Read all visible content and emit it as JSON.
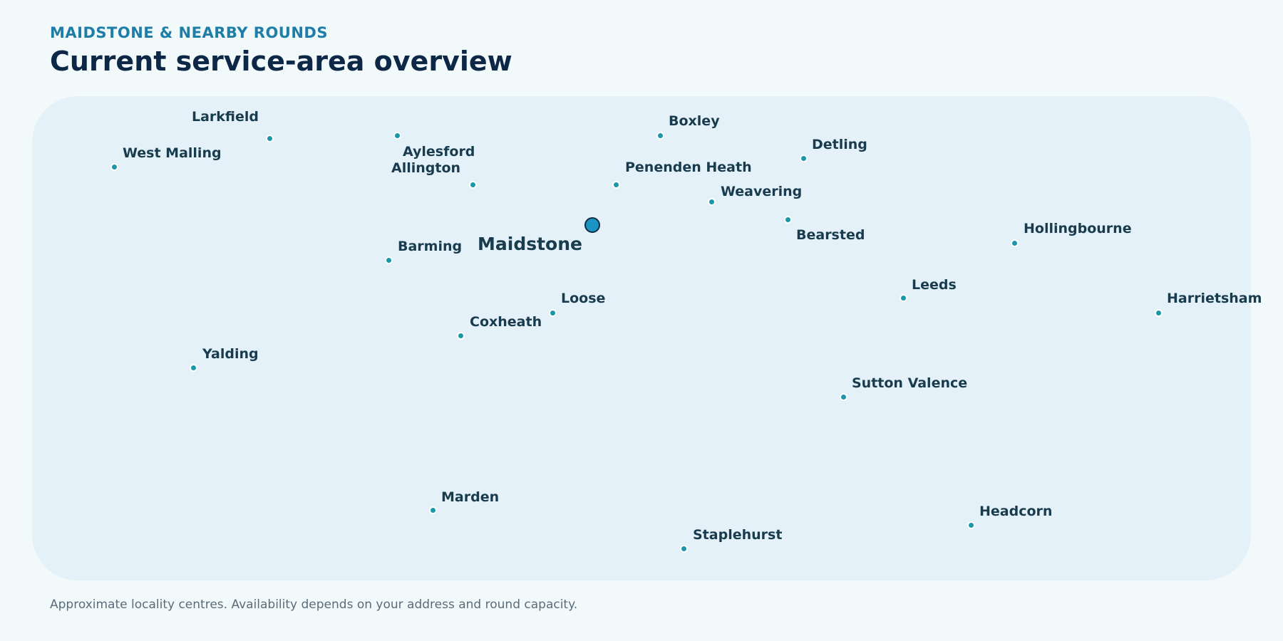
{
  "header": {
    "eyebrow": "MAIDSTONE & NEARBY ROUNDS",
    "title": "Current service-area overview"
  },
  "map": {
    "places": [
      {
        "name": "Larkfield"
      },
      {
        "name": "West Malling"
      },
      {
        "name": "Aylesford"
      },
      {
        "name": "Allington"
      },
      {
        "name": "Boxley"
      },
      {
        "name": "Penenden Heath"
      },
      {
        "name": "Detling"
      },
      {
        "name": "Weavering"
      },
      {
        "name": "Bearsted"
      },
      {
        "name": "Maidstone",
        "primary": true
      },
      {
        "name": "Barming"
      },
      {
        "name": "Hollingbourne"
      },
      {
        "name": "Leeds"
      },
      {
        "name": "Harrietsham"
      },
      {
        "name": "Loose"
      },
      {
        "name": "Coxheath"
      },
      {
        "name": "Yalding"
      },
      {
        "name": "Sutton Valence"
      },
      {
        "name": "Marden"
      },
      {
        "name": "Headcorn"
      },
      {
        "name": "Staplehurst"
      }
    ]
  },
  "footnote": "Approximate locality centres. Availability depends on your address and round capacity."
}
